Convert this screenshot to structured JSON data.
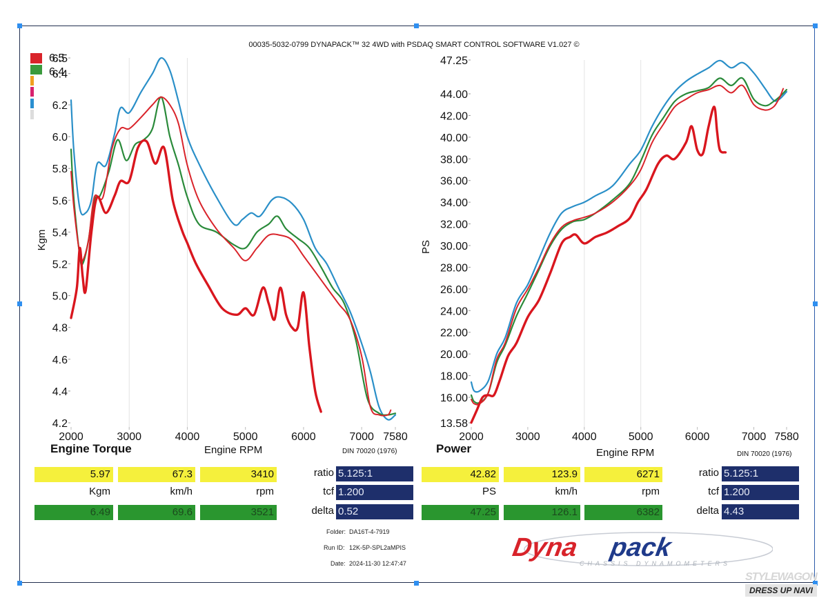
{
  "header": {
    "title": "00035-5032-0799 DYNAPACK™ 32 4WD with PSDAQ SMART CONTROL SOFTWARE V1.027 ©"
  },
  "legend": {
    "swatches": [
      {
        "color": "#d9232a",
        "label": "6.5"
      },
      {
        "color": "#3a9a3c",
        "label": "6.4"
      },
      {
        "color": "#f0a020",
        "label": ""
      },
      {
        "color": "#d8226e",
        "label": ""
      },
      {
        "color": "#2a8fd0",
        "label": ""
      },
      {
        "color": "#dddddd",
        "label": ""
      }
    ]
  },
  "series_colors": {
    "red_thick": "#d9161e",
    "red_thin": "#d9232a",
    "green": "#2a8a3a",
    "blue": "#2a8fc8"
  },
  "chart_data": [
    {
      "type": "line",
      "name": "torque",
      "title": "Engine Torque",
      "xlabel": "Engine RPM",
      "ylabel": "Kgm",
      "note": "DIN 70020 (1976)",
      "xlim": [
        2000,
        7580
      ],
      "ylim": [
        4.2,
        6.5
      ],
      "xticks": [
        "2000",
        "3000",
        "4000",
        "5000",
        "6000",
        "7000",
        "7580"
      ],
      "xtick_values": [
        2000,
        3000,
        4000,
        5000,
        6000,
        7000,
        7580
      ],
      "yticks": [
        "6.5",
        "6.4",
        "6.2",
        "6.0",
        "5.8",
        "5.6",
        "5.4",
        "5.2",
        "5.0",
        "4.8",
        "4.6",
        "4.4",
        "4.2"
      ],
      "ytick_values": [
        6.5,
        6.4,
        6.2,
        6.0,
        5.8,
        5.6,
        5.4,
        5.2,
        5.0,
        4.8,
        4.6,
        4.4,
        4.2
      ],
      "gridlines_x": [
        3000,
        4000
      ],
      "series": [
        {
          "name": "blue",
          "color_key": "blue",
          "width": 2.2,
          "x": [
            2000,
            2050,
            2150,
            2250,
            2350,
            2450,
            2600,
            2750,
            2850,
            3000,
            3200,
            3400,
            3550,
            3700,
            3850,
            4000,
            4200,
            4500,
            4800,
            4950,
            5100,
            5250,
            5450,
            5600,
            5800,
            6000,
            6200,
            6400,
            6600,
            6800,
            7000,
            7150,
            7300,
            7450,
            7580
          ],
          "y": [
            6.23,
            5.9,
            5.55,
            5.52,
            5.6,
            5.83,
            5.82,
            6.02,
            6.18,
            6.15,
            6.28,
            6.4,
            6.5,
            6.42,
            6.22,
            6.0,
            5.83,
            5.62,
            5.45,
            5.48,
            5.52,
            5.5,
            5.6,
            5.62,
            5.58,
            5.48,
            5.3,
            5.2,
            5.05,
            4.9,
            4.7,
            4.52,
            4.3,
            4.22,
            4.25
          ]
        },
        {
          "name": "green",
          "color_key": "green",
          "width": 2.2,
          "x": [
            2000,
            2050,
            2150,
            2200,
            2300,
            2400,
            2500,
            2650,
            2800,
            2950,
            3100,
            3250,
            3400,
            3550,
            3700,
            3850,
            4000,
            4200,
            4500,
            4800,
            5000,
            5200,
            5400,
            5550,
            5700,
            5900,
            6100,
            6300,
            6500,
            6700,
            6900,
            7100,
            7300,
            7450,
            7580
          ],
          "y": [
            5.92,
            5.6,
            5.25,
            5.2,
            5.35,
            5.6,
            5.63,
            5.78,
            5.98,
            5.85,
            5.95,
            5.98,
            6.05,
            6.25,
            6.0,
            5.82,
            5.62,
            5.45,
            5.4,
            5.32,
            5.3,
            5.4,
            5.45,
            5.5,
            5.42,
            5.36,
            5.3,
            5.18,
            5.05,
            4.95,
            4.72,
            4.35,
            4.26,
            4.25,
            4.26
          ]
        },
        {
          "name": "red_thin",
          "color_key": "red_thin",
          "width": 2.0,
          "x": [
            2000,
            2050,
            2150,
            2200,
            2300,
            2400,
            2550,
            2700,
            2850,
            3000,
            3200,
            3400,
            3550,
            3700,
            3850,
            4000,
            4200,
            4500,
            4800,
            5000,
            5200,
            5400,
            5600,
            5800,
            6000,
            6200,
            6400,
            6600,
            6800,
            7000,
            7150,
            7300,
            7450,
            7500
          ],
          "y": [
            5.78,
            5.55,
            5.26,
            5.22,
            5.35,
            5.62,
            5.62,
            5.92,
            6.05,
            6.05,
            6.12,
            6.2,
            6.25,
            6.2,
            6.08,
            5.82,
            5.6,
            5.42,
            5.3,
            5.22,
            5.3,
            5.38,
            5.38,
            5.35,
            5.25,
            5.15,
            5.05,
            4.95,
            4.85,
            4.62,
            4.3,
            4.25,
            4.25,
            4.28
          ]
        },
        {
          "name": "red_thick",
          "color_key": "red_thick",
          "width": 3.4,
          "x": [
            2000,
            2100,
            2150,
            2200,
            2250,
            2350,
            2450,
            2600,
            2750,
            2850,
            3000,
            3150,
            3300,
            3450,
            3600,
            3750,
            3900,
            4000,
            4150,
            4350,
            4600,
            4850,
            5000,
            5150,
            5300,
            5400,
            5500,
            5600,
            5700,
            5800,
            5900,
            6000,
            6100,
            6200,
            6300
          ],
          "y": [
            4.86,
            5.05,
            5.3,
            5.12,
            5.03,
            5.4,
            5.62,
            5.52,
            5.63,
            5.72,
            5.72,
            5.93,
            5.97,
            5.83,
            5.93,
            5.6,
            5.42,
            5.33,
            5.2,
            5.07,
            4.92,
            4.88,
            4.92,
            4.88,
            5.05,
            4.95,
            4.85,
            5.05,
            4.88,
            4.8,
            4.8,
            5.02,
            4.68,
            4.4,
            4.27
          ]
        }
      ]
    },
    {
      "type": "line",
      "name": "power",
      "title": "Power",
      "xlabel": "Engine RPM",
      "ylabel": "PS",
      "note": "DIN 70020 (1976)",
      "xlim": [
        2000,
        7580
      ],
      "ylim": [
        13.58,
        47.25
      ],
      "xticks": [
        "2000",
        "3000",
        "4000",
        "5000",
        "6000",
        "7000",
        "7580"
      ],
      "xtick_values": [
        2000,
        3000,
        4000,
        5000,
        6000,
        7000,
        7580
      ],
      "yticks": [
        "47.25",
        "44.00",
        "42.00",
        "40.00",
        "38.00",
        "36.00",
        "34.00",
        "32.00",
        "30.00",
        "28.00",
        "26.00",
        "24.00",
        "22.00",
        "20.00",
        "18.00",
        "16.00",
        "13.58"
      ],
      "ytick_values": [
        47.25,
        44,
        42,
        40,
        38,
        36,
        34,
        32,
        30,
        28,
        26,
        24,
        22,
        20,
        18,
        16,
        13.58
      ],
      "gridlines_x": [
        4000,
        5000
      ],
      "series": [
        {
          "name": "blue",
          "color_key": "blue",
          "width": 2.2,
          "x": [
            2000,
            2050,
            2150,
            2300,
            2450,
            2600,
            2800,
            3000,
            3200,
            3400,
            3600,
            3800,
            4000,
            4200,
            4500,
            4800,
            5000,
            5200,
            5400,
            5600,
            5800,
            6000,
            6200,
            6400,
            6600,
            6800,
            7000,
            7200,
            7350,
            7450,
            7580
          ],
          "y": [
            17.4,
            16.6,
            16.6,
            17.5,
            20.0,
            21.5,
            24.7,
            26.4,
            28.8,
            31.2,
            33.0,
            33.6,
            34.0,
            34.6,
            35.5,
            37.5,
            38.8,
            41.0,
            42.8,
            44.2,
            45.2,
            45.9,
            46.5,
            47.2,
            46.5,
            47.0,
            46.0,
            44.5,
            43.4,
            43.5,
            44.2
          ]
        },
        {
          "name": "green",
          "color_key": "green",
          "width": 2.2,
          "x": [
            2000,
            2050,
            2150,
            2300,
            2450,
            2600,
            2800,
            3000,
            3200,
            3400,
            3600,
            3800,
            4000,
            4200,
            4500,
            4800,
            5000,
            5200,
            5400,
            5600,
            5800,
            6000,
            6200,
            6400,
            6600,
            6800,
            7000,
            7200,
            7350,
            7450,
            7580
          ],
          "y": [
            16.2,
            15.6,
            15.5,
            16.4,
            19.2,
            20.8,
            23.5,
            25.6,
            27.8,
            30.0,
            31.5,
            32.2,
            32.4,
            33.0,
            34.2,
            35.7,
            37.8,
            40.2,
            41.8,
            43.3,
            44.0,
            44.3,
            44.6,
            45.5,
            44.8,
            45.5,
            43.5,
            42.9,
            43.3,
            43.7,
            44.4
          ]
        },
        {
          "name": "red_thin",
          "color_key": "red_thin",
          "width": 2.0,
          "x": [
            2000,
            2050,
            2150,
            2300,
            2450,
            2600,
            2800,
            3000,
            3200,
            3400,
            3600,
            3800,
            4000,
            4200,
            4500,
            4800,
            5000,
            5200,
            5400,
            5600,
            5800,
            6000,
            6200,
            6400,
            6600,
            6800,
            7000,
            7200,
            7350,
            7450,
            7520
          ],
          "y": [
            15.8,
            15.4,
            15.4,
            16.4,
            19.5,
            21.0,
            24.2,
            26.0,
            28.0,
            30.2,
            31.7,
            32.3,
            32.6,
            33.0,
            34.0,
            35.5,
            37.0,
            39.5,
            41.2,
            42.8,
            43.5,
            44.1,
            44.4,
            44.8,
            44.1,
            44.8,
            43.0,
            42.5,
            42.8,
            43.6,
            44.5
          ]
        },
        {
          "name": "red_thick",
          "color_key": "red_thick",
          "width": 3.4,
          "x": [
            2000,
            2100,
            2200,
            2300,
            2400,
            2500,
            2650,
            2800,
            3000,
            3200,
            3400,
            3600,
            3750,
            3850,
            4000,
            4200,
            4400,
            4600,
            4800,
            4950,
            5100,
            5300,
            5450,
            5600,
            5800,
            5900,
            6000,
            6100,
            6200,
            6300,
            6350,
            6400,
            6500
          ],
          "y": [
            13.6,
            14.8,
            16.0,
            16.2,
            16.2,
            17.5,
            19.8,
            21.0,
            23.4,
            25.0,
            27.5,
            30.2,
            30.8,
            31.0,
            30.2,
            30.8,
            31.2,
            31.8,
            32.5,
            34.0,
            35.2,
            37.5,
            38.3,
            38.0,
            39.5,
            41.0,
            38.8,
            38.5,
            41.0,
            42.8,
            40.5,
            38.8,
            38.6
          ]
        }
      ]
    }
  ],
  "readouts": {
    "torque": {
      "yellow": [
        "5.97",
        "67.3",
        "3410"
      ],
      "units": [
        "Kgm",
        "km/h",
        "rpm"
      ],
      "green": [
        "6.49",
        "69.6",
        "3521"
      ],
      "params": [
        {
          "label": "ratio",
          "value": "5.125:1"
        },
        {
          "label": "tcf",
          "value": "1.200"
        },
        {
          "label": "delta",
          "value": "0.52"
        }
      ]
    },
    "power": {
      "yellow": [
        "42.82",
        "123.9",
        "6271"
      ],
      "units": [
        "PS",
        "km/h",
        "rpm"
      ],
      "green": [
        "47.25",
        "126.1",
        "6382"
      ],
      "params": [
        {
          "label": "ratio",
          "value": "5.125:1"
        },
        {
          "label": "tcf",
          "value": "1.200"
        },
        {
          "label": "delta",
          "value": "4.43"
        }
      ]
    }
  },
  "run_info": {
    "folder_label": "Folder:",
    "folder": "DA16T-4-7919",
    "run_label": "Run ID:",
    "run_id": "12K-5P-SPL2aMPIS",
    "date_label": "Date:",
    "date": "2024-11-30 12:47:47"
  },
  "logo": {
    "dyna": "Dyna",
    "pack": "pack",
    "tagline": "CHASSIS  DYNAMOMETERS",
    "red": "#d8232a",
    "blue": "#1f3a8a"
  },
  "watermark": {
    "top": "STYLEWAGON",
    "bottom": "DRESS UP NAVI"
  }
}
